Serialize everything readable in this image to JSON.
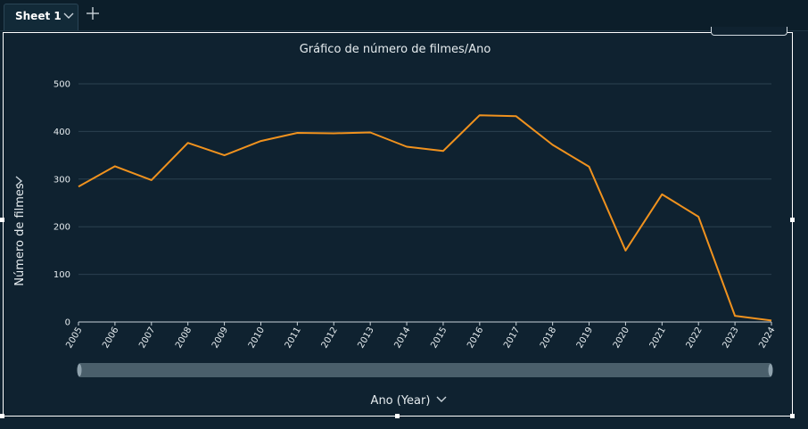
{
  "sheet_tab": {
    "label": "Sheet 1"
  },
  "colors": {
    "background": "#0f2230",
    "line": "#f0921e",
    "grid": "#2b4150",
    "text": "#e6ecef"
  },
  "chart_data": {
    "type": "line",
    "title": "Gráfico de número de filmes/Ano",
    "xlabel": "Ano (Year)",
    "ylabel": "Número de filmes",
    "ylim": [
      0,
      500
    ],
    "yticks": [
      0,
      100,
      200,
      300,
      400,
      500
    ],
    "categories": [
      "2005",
      "2006",
      "2007",
      "2008",
      "2009",
      "2010",
      "2011",
      "2012",
      "2013",
      "2014",
      "2015",
      "2016",
      "2017",
      "2018",
      "2019",
      "2020",
      "2021",
      "2022",
      "2023",
      "2024"
    ],
    "series": [
      {
        "values": [
          284,
          327,
          298,
          376,
          350,
          380,
          397,
          396,
          398,
          368,
          359,
          434,
          432,
          372,
          326,
          150,
          268,
          221,
          13,
          3
        ]
      }
    ],
    "grid": true
  }
}
